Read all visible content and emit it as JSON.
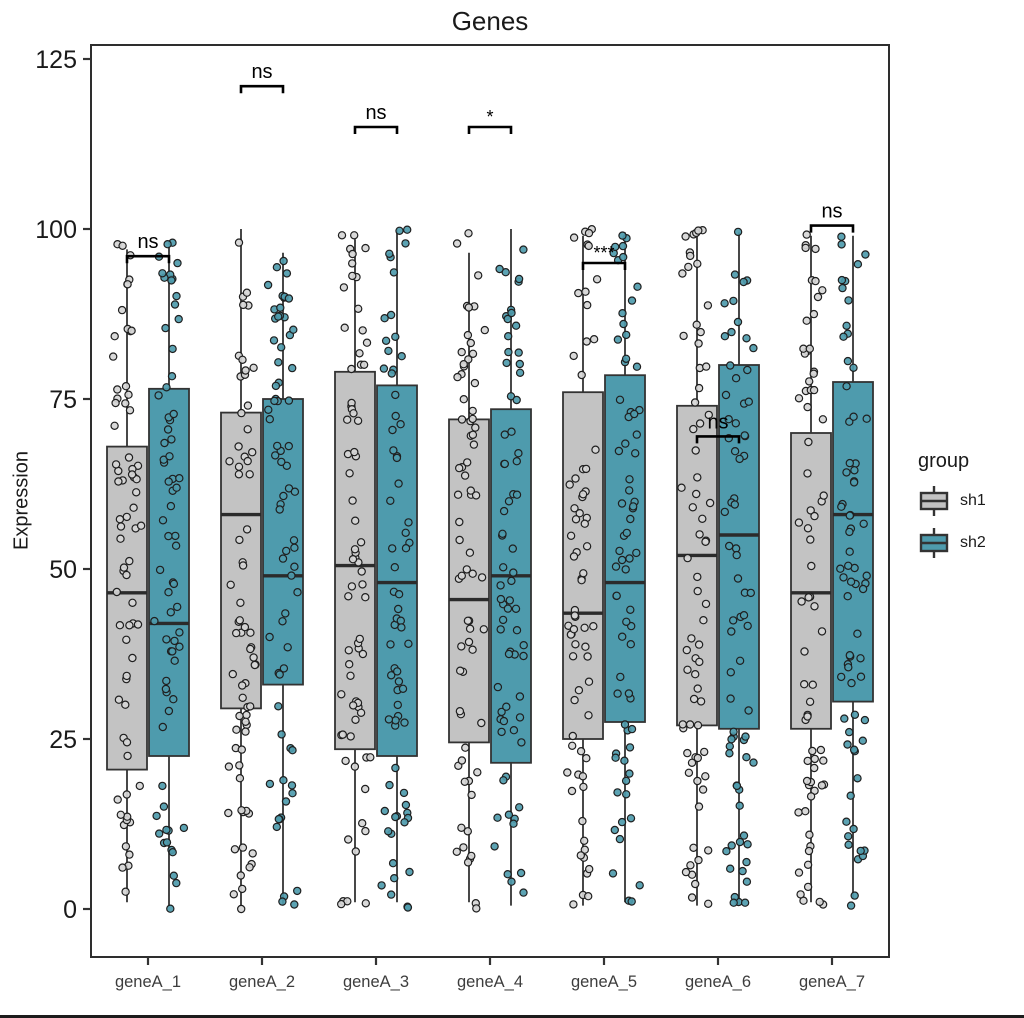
{
  "title": "Genes",
  "y_axis": {
    "label": "Expression",
    "ticks": [
      0,
      25,
      50,
      75,
      100,
      125
    ]
  },
  "x_axis": {
    "categories": [
      "geneA_1",
      "geneA_2",
      "geneA_3",
      "geneA_4",
      "geneA_5",
      "geneA_6",
      "geneA_7"
    ]
  },
  "legend": {
    "title": "group",
    "items": [
      {
        "label": "sh1",
        "color": "#C3C3C3"
      },
      {
        "label": "sh2",
        "color": "#4E9BAD"
      }
    ]
  },
  "colors": {
    "sh1_fill": "#C3C3C3",
    "sh2_fill": "#4E9BAD",
    "sh1_point_fill": "#D6D6D6",
    "sh2_point_fill": "#4E9BAD",
    "box_stroke": "#333333",
    "point_stroke": "#1f1f1f",
    "axis_stroke": "#333333",
    "panel_border": "#2e2e2e",
    "tick_text": "#1a1a1a",
    "x_tick_text": "#3d3d3d",
    "annotation_text": "#000000"
  },
  "chart_data": {
    "type": "boxplot",
    "title": "Genes",
    "xlabel": "",
    "ylabel": "Expression",
    "categories": [
      "geneA_1",
      "geneA_2",
      "geneA_3",
      "geneA_4",
      "geneA_5",
      "geneA_6",
      "geneA_7"
    ],
    "y_ticks": [
      0,
      25,
      50,
      75,
      100,
      125
    ],
    "ylim": [
      -7,
      127
    ],
    "grid": false,
    "legend_position": "right",
    "series": [
      {
        "name": "sh1",
        "fill": "#C3C3C3",
        "point_fill": "#D6D6D6",
        "stats": [
          {
            "whisker_low": 1,
            "q1": 20.5,
            "median": 46.5,
            "q3": 68,
            "whisker_high": 97
          },
          {
            "whisker_low": 0.5,
            "q1": 29.5,
            "median": 58,
            "q3": 73,
            "whisker_high": 100
          },
          {
            "whisker_low": 1,
            "q1": 23.5,
            "median": 50.5,
            "q3": 79,
            "whisker_high": 98.5
          },
          {
            "whisker_low": 1,
            "q1": 24.5,
            "median": 45.5,
            "q3": 72,
            "whisker_high": 96.5
          },
          {
            "whisker_low": 0.5,
            "q1": 25,
            "median": 43.5,
            "q3": 76,
            "whisker_high": 99
          },
          {
            "whisker_low": 0.5,
            "q1": 27,
            "median": 52,
            "q3": 74,
            "whisker_high": 99.5
          },
          {
            "whisker_low": 1,
            "q1": 26.5,
            "median": 46.5,
            "q3": 70,
            "whisker_high": 99
          }
        ]
      },
      {
        "name": "sh2",
        "fill": "#4E9BAD",
        "point_fill": "#4E9BAD",
        "stats": [
          {
            "whisker_low": 0.5,
            "q1": 22.5,
            "median": 42,
            "q3": 76.5,
            "whisker_high": 97.5
          },
          {
            "whisker_low": 0.5,
            "q1": 33,
            "median": 49,
            "q3": 75,
            "whisker_high": 96.5
          },
          {
            "whisker_low": 1,
            "q1": 22.5,
            "median": 48,
            "q3": 77,
            "whisker_high": 100
          },
          {
            "whisker_low": 0.5,
            "q1": 21.5,
            "median": 49,
            "q3": 73.5,
            "whisker_high": 100
          },
          {
            "whisker_low": 1,
            "q1": 27.5,
            "median": 48,
            "q3": 78.5,
            "whisker_high": 99.5
          },
          {
            "whisker_low": 0.5,
            "q1": 26.5,
            "median": 55,
            "q3": 80,
            "whisker_high": 99.5
          },
          {
            "whisker_low": 1.5,
            "q1": 30.5,
            "median": 58,
            "q3": 77.5,
            "whisker_high": 99
          }
        ]
      }
    ],
    "significance": [
      {
        "category": "geneA_1",
        "label": "ns",
        "bracket_y": 96
      },
      {
        "category": "geneA_2",
        "label": "ns",
        "bracket_y": 121
      },
      {
        "category": "geneA_3",
        "label": "ns",
        "bracket_y": 115
      },
      {
        "category": "geneA_4",
        "label": "*",
        "bracket_y": 115
      },
      {
        "category": "geneA_5",
        "label": "***",
        "bracket_y": 95
      },
      {
        "category": "geneA_6",
        "label": "ns",
        "bracket_y": 69.5
      },
      {
        "category": "geneA_7",
        "label": "ns",
        "bracket_y": 100.5
      }
    ],
    "jitter": {
      "points_per_box": 70,
      "value_range": [
        0,
        100
      ],
      "seed": 11
    }
  }
}
